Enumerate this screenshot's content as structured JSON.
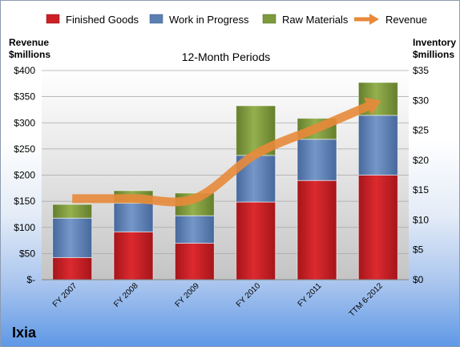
{
  "chart_data": {
    "type": "bar",
    "subtitle": "12-Month Periods",
    "company": "Ixia",
    "categories": [
      "FY 2007",
      "FY 2008",
      "FY 2009",
      "FY 2010",
      "FY 2011",
      "TTM 6-2012"
    ],
    "ylabel_left": [
      "Revenue",
      "$millions"
    ],
    "ylabel_right": [
      "Inventory",
      "$millions"
    ],
    "ylim_left": [
      0,
      400
    ],
    "ylim_right": [
      0,
      35
    ],
    "left_ticks": [
      {
        "value": 0,
        "label": "$-"
      },
      {
        "value": 50,
        "label": "$50"
      },
      {
        "value": 100,
        "label": "$100"
      },
      {
        "value": 150,
        "label": "$150"
      },
      {
        "value": 200,
        "label": "$200"
      },
      {
        "value": 250,
        "label": "$250"
      },
      {
        "value": 300,
        "label": "$300"
      },
      {
        "value": 350,
        "label": "$350"
      },
      {
        "value": 400,
        "label": "$400"
      }
    ],
    "right_ticks": [
      {
        "value": 0,
        "label": "$0"
      },
      {
        "value": 5,
        "label": "$5"
      },
      {
        "value": 10,
        "label": "$10"
      },
      {
        "value": 15,
        "label": "$15"
      },
      {
        "value": 20,
        "label": "$20"
      },
      {
        "value": 25,
        "label": "$25"
      },
      {
        "value": 30,
        "label": "$30"
      },
      {
        "value": 35,
        "label": "$35"
      }
    ],
    "stacked_series": [
      {
        "name": "Finished Goods",
        "color": "#cc1f24",
        "values": [
          3.7,
          8.0,
          6.1,
          13.0,
          16.6,
          17.5
        ]
      },
      {
        "name": "Work in Progress",
        "color": "#5b7fb3",
        "values": [
          6.6,
          4.8,
          4.6,
          7.8,
          6.9,
          10.0
        ]
      },
      {
        "name": "Raw Materials",
        "color": "#7d9a3c",
        "values": [
          2.3,
          2.1,
          3.8,
          8.3,
          3.5,
          5.5
        ]
      }
    ],
    "line_series": {
      "name": "Revenue",
      "color": "#e8893a",
      "axis": "left",
      "values": [
        155,
        155,
        155,
        240,
        290,
        340
      ]
    }
  }
}
